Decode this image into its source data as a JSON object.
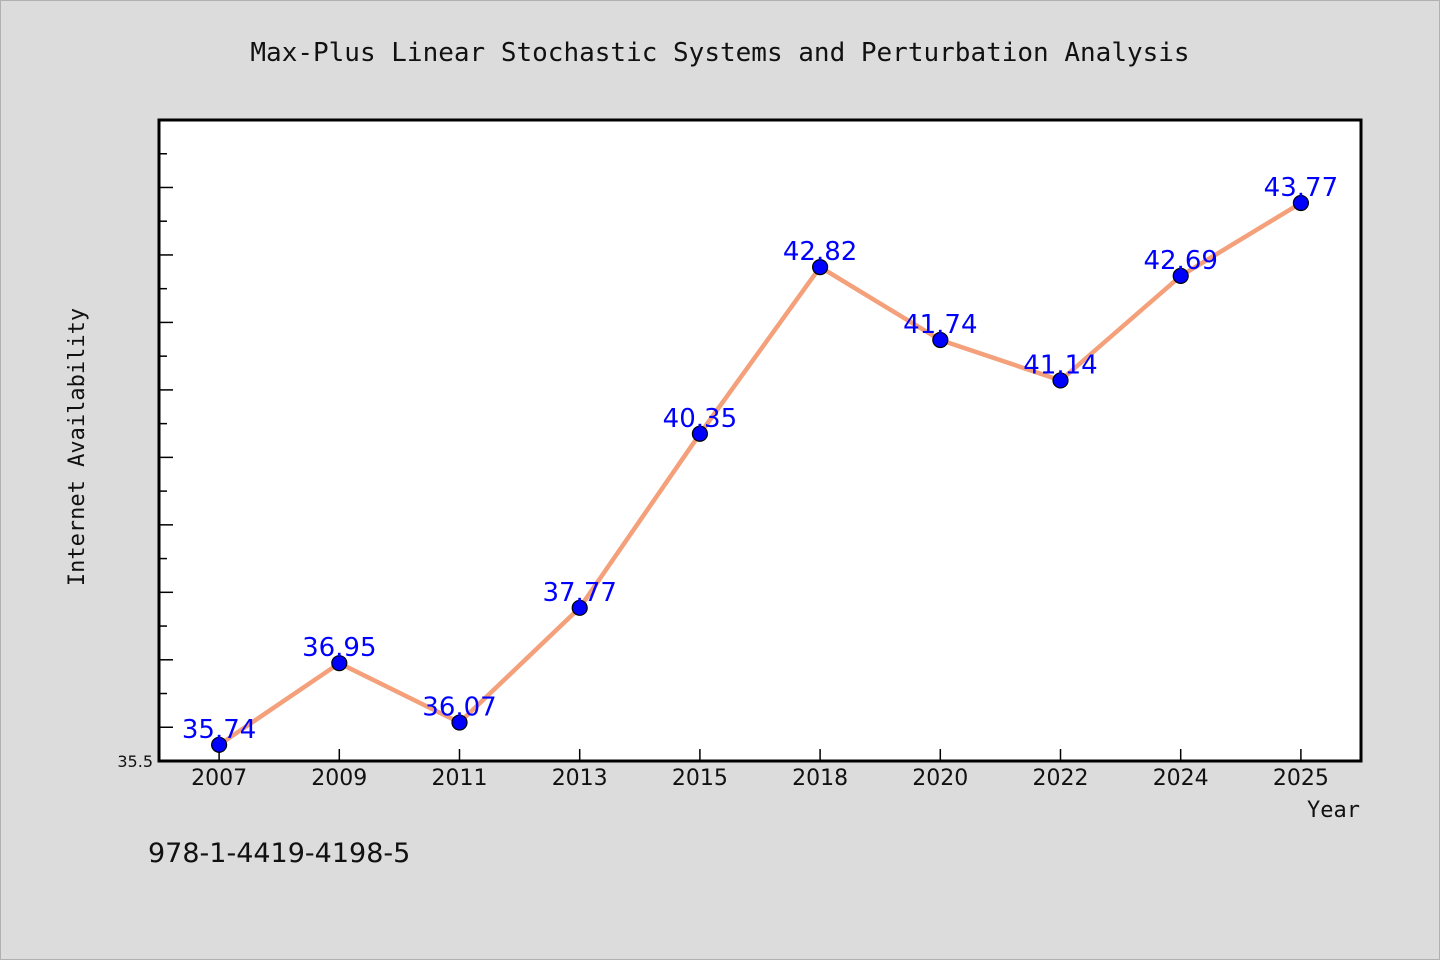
{
  "chart_data": {
    "type": "line",
    "title": "Max-Plus Linear Stochastic Systems and Perturbation Analysis",
    "xlabel": "Year",
    "ylabel": "Internet Availability",
    "categories": [
      "2007",
      "2009",
      "2011",
      "2013",
      "2015",
      "2018",
      "2020",
      "2022",
      "2024",
      "2025"
    ],
    "values": [
      35.74,
      36.95,
      36.07,
      37.77,
      40.35,
      42.82,
      41.74,
      41.14,
      42.69,
      43.77
    ],
    "data_labels": [
      "35.74",
      "36.95",
      "36.07",
      "37.77",
      "40.35",
      "42.82",
      "41.74",
      "41.14",
      "42.69",
      "43.77"
    ],
    "ylim": [
      35.5,
      45.0
    ],
    "y_tick_labels": [
      "35.5"
    ],
    "grid": false,
    "legend": "none",
    "colors": {
      "line": "#f4a07a",
      "marker": "#0000ff",
      "marker_edge": "#000000",
      "data_label": "#0000ff",
      "plot_background": "#ffffff",
      "page_background": "#dcdcdc"
    }
  },
  "footer": {
    "isbn": "978-1-4419-4198-5"
  }
}
